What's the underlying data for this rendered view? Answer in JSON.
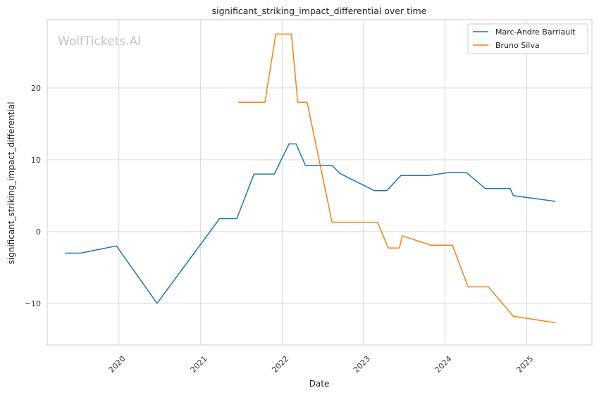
{
  "chart_data": {
    "type": "line",
    "title": "significant_striking_impact_differential over time",
    "xlabel": "Date",
    "ylabel": "significant_striking_impact_differential",
    "watermark": "WolfTickets.AI",
    "x_ticks": [
      "2020",
      "2021",
      "2022",
      "2023",
      "2024",
      "2025"
    ],
    "y_ticks": [
      -10,
      0,
      10,
      20
    ],
    "xlim": [
      "2019-02-14",
      "2025-10-20"
    ],
    "ylim": [
      -15.8,
      29.5
    ],
    "grid": true,
    "legend_position": "top-right",
    "series": [
      {
        "name": "Marc-Andre Barriault",
        "color": "#1f77b4",
        "points": [
          [
            "2019-05-04",
            -3.0
          ],
          [
            "2019-07-13",
            -3.0
          ],
          [
            "2019-12-21",
            -2.0
          ],
          [
            "2020-06-20",
            -10.0
          ],
          [
            "2021-03-27",
            1.8
          ],
          [
            "2021-06-12",
            1.8
          ],
          [
            "2021-08-28",
            8.0
          ],
          [
            "2021-11-27",
            8.0
          ],
          [
            "2022-02-01",
            12.2
          ],
          [
            "2022-03-05",
            12.2
          ],
          [
            "2022-04-16",
            9.2
          ],
          [
            "2022-08-13",
            9.2
          ],
          [
            "2022-09-17",
            8.1
          ],
          [
            "2023-02-18",
            5.7
          ],
          [
            "2023-04-15",
            5.7
          ],
          [
            "2023-06-17",
            7.8
          ],
          [
            "2023-10-21",
            7.8
          ],
          [
            "2024-01-13",
            8.2
          ],
          [
            "2024-04-06",
            8.2
          ],
          [
            "2024-06-29",
            6.0
          ],
          [
            "2024-10-19",
            6.0
          ],
          [
            "2024-11-02",
            5.0
          ],
          [
            "2025-05-10",
            4.2
          ]
        ]
      },
      {
        "name": "Bruno Silva",
        "color": "#ff7f0e",
        "points": [
          [
            "2021-06-19",
            18.0
          ],
          [
            "2021-10-16",
            18.0
          ],
          [
            "2021-12-04",
            27.5
          ],
          [
            "2022-02-12",
            27.5
          ],
          [
            "2022-03-12",
            18.0
          ],
          [
            "2022-04-23",
            18.0
          ],
          [
            "2022-08-13",
            1.3
          ],
          [
            "2023-03-04",
            1.3
          ],
          [
            "2023-04-22",
            -2.3
          ],
          [
            "2023-06-10",
            -2.3
          ],
          [
            "2023-06-24",
            -0.6
          ],
          [
            "2023-10-28",
            -1.9
          ],
          [
            "2024-02-03",
            -1.9
          ],
          [
            "2024-04-13",
            -7.7
          ],
          [
            "2024-07-13",
            -7.7
          ],
          [
            "2024-11-02",
            -11.8
          ],
          [
            "2025-05-10",
            -12.7
          ]
        ]
      }
    ]
  }
}
